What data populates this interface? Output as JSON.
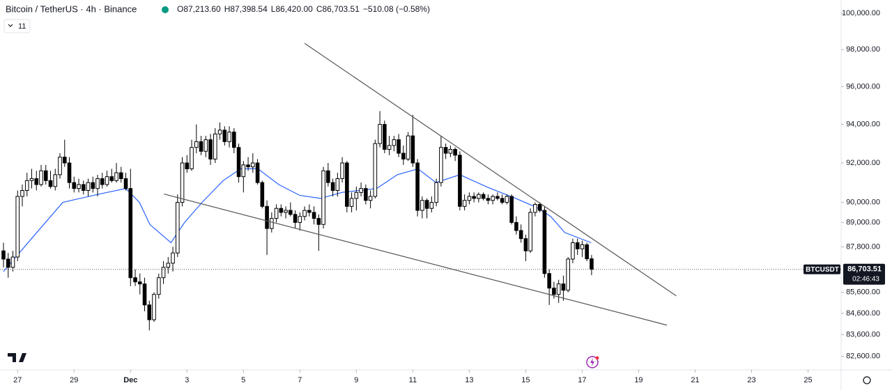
{
  "header": {
    "symbol": "Bitcoin / TetherUS · 4h · Binance",
    "ohlc": [
      "O87,213.60",
      "H87,398.54",
      "L86,420.00",
      "C86,703.51",
      "−510.08 (−0.58%)"
    ],
    "indicators": "11"
  },
  "chart_data": {
    "type": "candlestick",
    "log": true,
    "ylim": [
      81980,
      100750
    ],
    "xlim": [
      -0.74,
      177
    ],
    "yticks": [
      {
        "value": 100000,
        "label": "100,000.00"
      },
      {
        "value": 98000,
        "label": "98,000.00"
      },
      {
        "value": 96000,
        "label": "96,000.00"
      },
      {
        "value": 94000,
        "label": "94,000.00"
      },
      {
        "value": 92000,
        "label": "92,000.00"
      },
      {
        "value": 90000,
        "label": "90,000.00"
      },
      {
        "value": 89000,
        "label": "89,000.00"
      },
      {
        "value": 87800,
        "label": "87,800.00"
      },
      {
        "value": 85600,
        "label": "85,600.00"
      },
      {
        "value": 84600,
        "label": "84,600.00"
      },
      {
        "value": 83600,
        "label": "83,600.00"
      },
      {
        "value": 82600,
        "label": "82,600.00"
      }
    ],
    "xticks": [
      {
        "value": 3,
        "label": "27"
      },
      {
        "value": 15,
        "label": "29"
      },
      {
        "value": 27,
        "label": "Dec"
      },
      {
        "value": 39,
        "label": "3"
      },
      {
        "value": 51,
        "label": "5"
      },
      {
        "value": 63,
        "label": "7"
      },
      {
        "value": 75,
        "label": "9"
      },
      {
        "value": 87,
        "label": "11"
      },
      {
        "value": 99,
        "label": "13"
      },
      {
        "value": 111,
        "label": "15"
      },
      {
        "value": 123,
        "label": "17"
      },
      {
        "value": 135,
        "label": "19"
      },
      {
        "value": 147,
        "label": "21"
      },
      {
        "value": 159,
        "label": "23"
      },
      {
        "value": 171,
        "label": "25"
      }
    ],
    "up_color": "#ffffff",
    "down_color": "#000000",
    "ohlc": [
      [
        87600,
        88000,
        86800,
        87200
      ],
      [
        87200,
        87500,
        86300,
        86800
      ],
      [
        86800,
        87600,
        86600,
        87300
      ],
      [
        87300,
        90600,
        87100,
        90300
      ],
      [
        90300,
        90900,
        89800,
        90600
      ],
      [
        90600,
        91500,
        90300,
        91100
      ],
      [
        91100,
        91700,
        90700,
        91200
      ],
      [
        91200,
        91600,
        90600,
        90900
      ],
      [
        90900,
        91900,
        90800,
        91600
      ],
      [
        91600,
        91900,
        90900,
        91100
      ],
      [
        91100,
        91600,
        90700,
        90800
      ],
      [
        90800,
        91700,
        90600,
        91400
      ],
      [
        91400,
        92500,
        91200,
        92300
      ],
      [
        92300,
        93200,
        91800,
        92000
      ],
      [
        92000,
        92300,
        90700,
        91000
      ],
      [
        91000,
        91300,
        90500,
        90700
      ],
      [
        90700,
        91200,
        90500,
        90900
      ],
      [
        90900,
        91100,
        90400,
        90600
      ],
      [
        90600,
        91200,
        90300,
        91000
      ],
      [
        91000,
        91300,
        90500,
        90700
      ],
      [
        90700,
        91400,
        90300,
        91200
      ],
      [
        91200,
        91500,
        90700,
        90900
      ],
      [
        90900,
        91600,
        90800,
        91300
      ],
      [
        91300,
        91700,
        91000,
        91100
      ],
      [
        91100,
        92000,
        91000,
        91500
      ],
      [
        91500,
        91800,
        91000,
        91200
      ],
      [
        91200,
        91500,
        90600,
        90700
      ],
      [
        90700,
        91700,
        85900,
        86300
      ],
      [
        86300,
        86700,
        85900,
        86100
      ],
      [
        86100,
        86500,
        85500,
        86000
      ],
      [
        86000,
        86300,
        84700,
        85000
      ],
      [
        85000,
        85200,
        83800,
        84300
      ],
      [
        84300,
        85600,
        84200,
        85500
      ],
      [
        85500,
        86500,
        85300,
        86300
      ],
      [
        86300,
        87100,
        86000,
        86800
      ],
      [
        86800,
        87300,
        86500,
        87000
      ],
      [
        87000,
        87800,
        86600,
        87500
      ],
      [
        87500,
        90400,
        87300,
        90000
      ],
      [
        90000,
        92300,
        89800,
        92000
      ],
      [
        92000,
        92400,
        91500,
        91700
      ],
      [
        91700,
        93200,
        91600,
        92800
      ],
      [
        92800,
        94000,
        92500,
        93100
      ],
      [
        93100,
        93400,
        92400,
        92600
      ],
      [
        92600,
        93400,
        92300,
        93200
      ],
      [
        93200,
        93500,
        91900,
        92200
      ],
      [
        92200,
        93800,
        92000,
        93500
      ],
      [
        93500,
        94100,
        93200,
        93700
      ],
      [
        93700,
        93900,
        92900,
        93100
      ],
      [
        93100,
        93900,
        92800,
        93600
      ],
      [
        93600,
        93800,
        92500,
        92800
      ],
      [
        92800,
        93000,
        91000,
        91300
      ],
      [
        91300,
        92100,
        90500,
        91900
      ],
      [
        91900,
        92300,
        91600,
        91800
      ],
      [
        91800,
        92500,
        91500,
        92000
      ],
      [
        92000,
        92200,
        90900,
        91000
      ],
      [
        91000,
        91100,
        89700,
        89800
      ],
      [
        89800,
        90100,
        87400,
        88700
      ],
      [
        88700,
        89500,
        88500,
        89200
      ],
      [
        89200,
        89900,
        89000,
        89700
      ],
      [
        89700,
        89900,
        89300,
        89500
      ],
      [
        89500,
        89800,
        89200,
        89600
      ],
      [
        89600,
        90000,
        89300,
        89400
      ],
      [
        89400,
        89600,
        88700,
        89000
      ],
      [
        89000,
        89500,
        88600,
        89300
      ],
      [
        89300,
        89800,
        89100,
        89600
      ],
      [
        89600,
        89900,
        89300,
        89500
      ],
      [
        89500,
        89800,
        88900,
        89200
      ],
      [
        89200,
        89400,
        87600,
        88900
      ],
      [
        88900,
        91800,
        88700,
        91600
      ],
      [
        91600,
        92000,
        90800,
        91000
      ],
      [
        91000,
        91200,
        90300,
        90600
      ],
      [
        90600,
        91500,
        90300,
        91200
      ],
      [
        91200,
        92300,
        91000,
        92000
      ],
      [
        92000,
        92100,
        89500,
        89800
      ],
      [
        89800,
        90500,
        89500,
        90200
      ],
      [
        90200,
        90800,
        89600,
        90500
      ],
      [
        90500,
        91000,
        90300,
        90700
      ],
      [
        90700,
        90900,
        89900,
        90100
      ],
      [
        90100,
        90600,
        89700,
        90300
      ],
      [
        90300,
        93200,
        90200,
        93000
      ],
      [
        93000,
        94700,
        92800,
        94000
      ],
      [
        94000,
        94200,
        92500,
        92700
      ],
      [
        92700,
        93400,
        92400,
        92900
      ],
      [
        92900,
        93400,
        92600,
        93200
      ],
      [
        93200,
        93500,
        92300,
        92500
      ],
      [
        92500,
        92900,
        91900,
        92200
      ],
      [
        92200,
        93600,
        92100,
        93400
      ],
      [
        93400,
        94500,
        91800,
        92000
      ],
      [
        92000,
        92200,
        89300,
        89600
      ],
      [
        89600,
        90300,
        89200,
        90100
      ],
      [
        90100,
        90200,
        89200,
        89700
      ],
      [
        89700,
        90300,
        89500,
        90000
      ],
      [
        90000,
        91200,
        89800,
        91000
      ],
      [
        91000,
        93400,
        90800,
        92800
      ],
      [
        92800,
        93000,
        92200,
        92500
      ],
      [
        92500,
        92900,
        92300,
        92700
      ],
      [
        92700,
        92800,
        92100,
        92400
      ],
      [
        92400,
        92600,
        89600,
        89800
      ],
      [
        89800,
        90400,
        89600,
        90100
      ],
      [
        90100,
        90500,
        89900,
        90300
      ],
      [
        90300,
        90500,
        90000,
        90200
      ],
      [
        90200,
        90500,
        90000,
        90400
      ],
      [
        90400,
        90500,
        90100,
        90200
      ],
      [
        90200,
        90400,
        89900,
        90100
      ],
      [
        90100,
        90400,
        89900,
        90300
      ],
      [
        90300,
        90500,
        90100,
        90200
      ],
      [
        90200,
        90400,
        89900,
        90000
      ],
      [
        90000,
        90400,
        89900,
        90300
      ],
      [
        90300,
        90400,
        88900,
        89000
      ],
      [
        89000,
        89300,
        88400,
        88600
      ],
      [
        88600,
        88900,
        88000,
        88200
      ],
      [
        88200,
        88400,
        87100,
        87600
      ],
      [
        87600,
        89700,
        87500,
        89500
      ],
      [
        89500,
        90000,
        89300,
        89900
      ],
      [
        89900,
        90000,
        89500,
        89600
      ],
      [
        89600,
        89800,
        86300,
        86500
      ],
      [
        86500,
        86700,
        85000,
        85800
      ],
      [
        85800,
        86100,
        85300,
        85500
      ],
      [
        85500,
        86200,
        85100,
        86000
      ],
      [
        86000,
        86400,
        85200,
        85700
      ],
      [
        85700,
        87300,
        85600,
        87200
      ],
      [
        87200,
        88200,
        87000,
        88000
      ],
      [
        88000,
        88200,
        87400,
        87700
      ],
      [
        87700,
        88100,
        87300,
        87900
      ],
      [
        87900,
        88000,
        87100,
        87213.6
      ],
      [
        87213.6,
        87398.54,
        86420,
        86703.51
      ]
    ],
    "ma": {
      "color": "#2962ff",
      "x": [
        0,
        6.7,
        12.6,
        20,
        26,
        28.9,
        31.1,
        35.6,
        38.5,
        42.2,
        46.7,
        50.4,
        54.1,
        58.5,
        63,
        67.4,
        71.9,
        79.3,
        83.7,
        88.1,
        91.9,
        97,
        103,
        108.9,
        113.3,
        116.3,
        119.3,
        124.9
      ],
      "values": [
        86600,
        88400,
        90000,
        90400,
        90700,
        90000,
        88900,
        88000,
        89000,
        90000,
        91100,
        91700,
        91700,
        90900,
        90350,
        90200,
        90500,
        90700,
        91400,
        91700,
        91000,
        91400,
        90750,
        90200,
        89750,
        89300,
        88500,
        88000
      ]
    },
    "trendlines": [
      {
        "x": [
          64,
          143
        ],
        "y": [
          98342,
          85430
        ],
        "color": "#555555"
      },
      {
        "x": [
          34.1,
          141
        ],
        "y": [
          90421,
          84047
        ],
        "color": "#555555"
      }
    ],
    "last_price": {
      "value": 86703.51,
      "label": "86,703.51"
    },
    "symbol_tag": "BTCUSDT",
    "countdown": "02:46:43"
  }
}
